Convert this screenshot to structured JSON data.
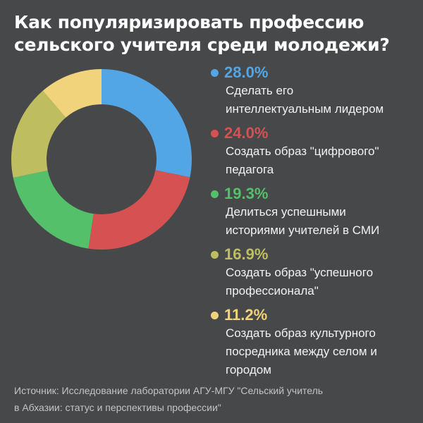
{
  "title": {
    "line1": "Как популяризировать профессию",
    "line2": "сельского учителя среди молодежи?"
  },
  "legend": [
    {
      "pct": "28.0%",
      "line1": "Сделать его",
      "line2": "интеллектуальным лидером",
      "line3": "",
      "color": "#52a6e6"
    },
    {
      "pct": "24.0%",
      "line1": "Создать образ \"цифрового\"",
      "line2": "педагога",
      "line3": "",
      "color": "#d65252"
    },
    {
      "pct": "19.3%",
      "line1": "Делиться успешными",
      "line2": "историями учителей в СМИ",
      "line3": "",
      "color": "#55c06a"
    },
    {
      "pct": "16.9%",
      "line1": "Создать образ \"успешного",
      "line2": "профессионала\"",
      "line3": "",
      "color": "#bebe60"
    },
    {
      "pct": "11.2%",
      "line1": "Создать образ культурного",
      "line2": "посредника между селом и",
      "line3": "городом",
      "color": "#f0d37a"
    }
  ],
  "source": {
    "line1": "Источник: Исследование лаборатории АГУ-МГУ \"Сельский учитель",
    "line2": "в Абхазии: статус и перспективы профессии\""
  },
  "chart_data": {
    "type": "pie",
    "variant": "donut",
    "title": "Как популяризировать профессию сельского учителя среди молодежи?",
    "categories": [
      "Сделать его интеллектуальным лидером",
      "Создать образ \"цифрового\" педагога",
      "Делиться успешными историями учителей в СМИ",
      "Создать образ \"успешного профессионала\"",
      "Создать образ культурного посредника между селом и городом"
    ],
    "values": [
      28.0,
      24.0,
      19.3,
      16.9,
      11.2
    ],
    "unit": "%",
    "colors": [
      "#52a6e6",
      "#d65252",
      "#55c06a",
      "#bebe60",
      "#f0d37a"
    ],
    "start_angle": "12 o'clock, clockwise",
    "legend_position": "right",
    "source": "Источник: Исследование лаборатории АГУ-МГУ \"Сельский учитель в Абхазии: статус и перспективы профессии\""
  }
}
